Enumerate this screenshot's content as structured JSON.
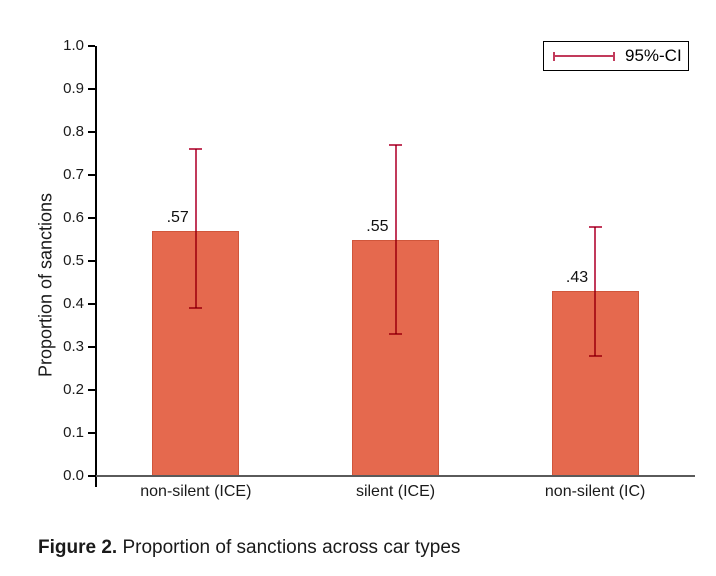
{
  "figure": {
    "caption_label": "Figure 2.",
    "caption_text": " Proportion of sanctions across car types"
  },
  "chart_data": {
    "type": "bar",
    "title": "",
    "xlabel": "",
    "ylabel": "Proportion of sanctions",
    "ylim": [
      0.0,
      1.0
    ],
    "grid": false,
    "yticks": [
      {
        "value": 0.0,
        "label": "0.0"
      },
      {
        "value": 0.1,
        "label": "0.1"
      },
      {
        "value": 0.2,
        "label": "0.2"
      },
      {
        "value": 0.3,
        "label": "0.3"
      },
      {
        "value": 0.4,
        "label": "0.4"
      },
      {
        "value": 0.5,
        "label": "0.5"
      },
      {
        "value": 0.6,
        "label": "0.6"
      },
      {
        "value": 0.7,
        "label": "0.7"
      },
      {
        "value": 0.8,
        "label": "0.8"
      },
      {
        "value": 0.9,
        "label": "0.9"
      },
      {
        "value": 1.0,
        "label": "1.0"
      }
    ],
    "categories": [
      "non-silent (ICE)",
      "silent (ICE)",
      "non-silent (IC)"
    ],
    "values": [
      0.57,
      0.55,
      0.43
    ],
    "value_labels": [
      ".57",
      ".55",
      ".43"
    ],
    "ci95": [
      {
        "low": 0.39,
        "high": 0.76
      },
      {
        "low": 0.33,
        "high": 0.77
      },
      {
        "low": 0.28,
        "high": 0.58
      }
    ],
    "legend": {
      "label": "95%-CI",
      "position": "top-right"
    },
    "colors": {
      "bar_fill": "#e5694e",
      "bar_border": "#d0563b",
      "ci": "#c23a5b",
      "axis": "#000000",
      "xaxis_line": "#5a5a5a",
      "text": "#1a1a1a"
    }
  }
}
